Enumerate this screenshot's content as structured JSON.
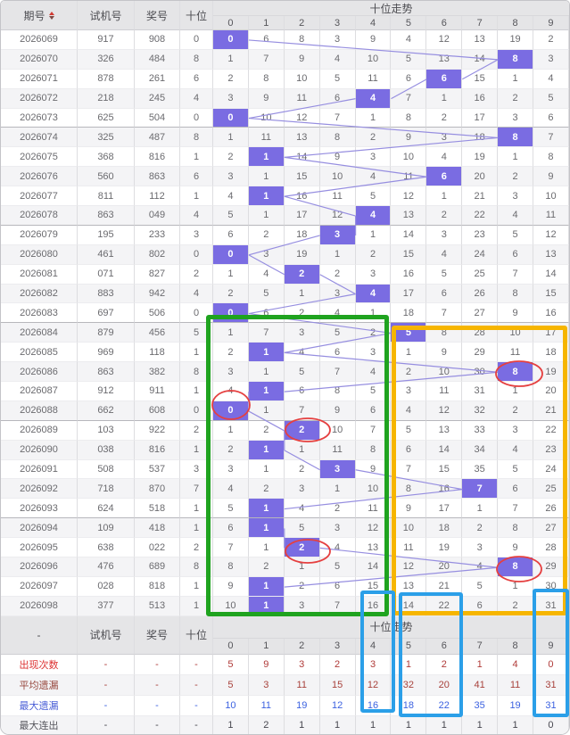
{
  "header": {
    "issue": "期号",
    "test": "试机号",
    "prize": "奖号",
    "tens": "十位",
    "trend": "十位走势"
  },
  "summary_header": {
    "issue": "-",
    "test": "试机号",
    "prize": "奖号",
    "tens": "十位",
    "trend": "十位走势"
  },
  "colors": {
    "hit_cell": "#7a6ce2",
    "trend_line": "#968ee0",
    "green_box": "#1fa31f",
    "yellow_box": "#f6b500",
    "blue_box": "#2b9fe8",
    "red_circle": "#e54040",
    "appear_text": "#dd3434",
    "avg_text": "#97493f",
    "max_miss_text": "#4a5ed6",
    "max_streak_text": "#55555c"
  },
  "chart_data": {
    "type": "table",
    "title": "十位走势",
    "digit_columns": [
      "0",
      "1",
      "2",
      "3",
      "4",
      "5",
      "6",
      "7",
      "8",
      "9"
    ],
    "rows": [
      {
        "issue": "2026069",
        "test": "917",
        "prize": "908",
        "tens": "0",
        "hit": 0,
        "cells": [
          "0",
          "6",
          "8",
          "3",
          "9",
          "4",
          "12",
          "13",
          "19",
          "2"
        ]
      },
      {
        "issue": "2026070",
        "test": "326",
        "prize": "484",
        "tens": "8",
        "hit": 8,
        "cells": [
          "1",
          "7",
          "9",
          "4",
          "10",
          "5",
          "13",
          "14",
          "8",
          "3"
        ]
      },
      {
        "issue": "2026071",
        "test": "878",
        "prize": "261",
        "tens": "6",
        "hit": 6,
        "cells": [
          "2",
          "8",
          "10",
          "5",
          "11",
          "6",
          "6",
          "15",
          "1",
          "4"
        ]
      },
      {
        "issue": "2026072",
        "test": "218",
        "prize": "245",
        "tens": "4",
        "hit": 4,
        "cells": [
          "3",
          "9",
          "11",
          "6",
          "4",
          "7",
          "1",
          "16",
          "2",
          "5"
        ]
      },
      {
        "issue": "2026073",
        "test": "625",
        "prize": "504",
        "tens": "0",
        "hit": 0,
        "cells": [
          "0",
          "10",
          "12",
          "7",
          "1",
          "8",
          "2",
          "17",
          "3",
          "6"
        ]
      },
      {
        "issue": "2026074",
        "test": "325",
        "prize": "487",
        "tens": "8",
        "hit": 8,
        "cells": [
          "1",
          "11",
          "13",
          "8",
          "2",
          "9",
          "3",
          "18",
          "8",
          "7"
        ]
      },
      {
        "issue": "2026075",
        "test": "368",
        "prize": "816",
        "tens": "1",
        "hit": 1,
        "cells": [
          "2",
          "1",
          "14",
          "9",
          "3",
          "10",
          "4",
          "19",
          "1",
          "8"
        ]
      },
      {
        "issue": "2026076",
        "test": "560",
        "prize": "863",
        "tens": "6",
        "hit": 6,
        "cells": [
          "3",
          "1",
          "15",
          "10",
          "4",
          "11",
          "6",
          "20",
          "2",
          "9"
        ]
      },
      {
        "issue": "2026077",
        "test": "811",
        "prize": "112",
        "tens": "1",
        "hit": 1,
        "cells": [
          "4",
          "1",
          "16",
          "11",
          "5",
          "12",
          "1",
          "21",
          "3",
          "10"
        ]
      },
      {
        "issue": "2026078",
        "test": "863",
        "prize": "049",
        "tens": "4",
        "hit": 4,
        "cells": [
          "5",
          "1",
          "17",
          "12",
          "4",
          "13",
          "2",
          "22",
          "4",
          "11"
        ]
      },
      {
        "issue": "2026079",
        "test": "195",
        "prize": "233",
        "tens": "3",
        "hit": 3,
        "cells": [
          "6",
          "2",
          "18",
          "3",
          "1",
          "14",
          "3",
          "23",
          "5",
          "12"
        ]
      },
      {
        "issue": "2026080",
        "test": "461",
        "prize": "802",
        "tens": "0",
        "hit": 0,
        "cells": [
          "0",
          "3",
          "19",
          "1",
          "2",
          "15",
          "4",
          "24",
          "6",
          "13"
        ]
      },
      {
        "issue": "2026081",
        "test": "071",
        "prize": "827",
        "tens": "2",
        "hit": 2,
        "cells": [
          "1",
          "4",
          "2",
          "2",
          "3",
          "16",
          "5",
          "25",
          "7",
          "14"
        ]
      },
      {
        "issue": "2026082",
        "test": "883",
        "prize": "942",
        "tens": "4",
        "hit": 4,
        "cells": [
          "2",
          "5",
          "1",
          "3",
          "4",
          "17",
          "6",
          "26",
          "8",
          "15"
        ]
      },
      {
        "issue": "2026083",
        "test": "697",
        "prize": "506",
        "tens": "0",
        "hit": 0,
        "cells": [
          "0",
          "6",
          "2",
          "4",
          "1",
          "18",
          "7",
          "27",
          "9",
          "16"
        ]
      },
      {
        "issue": "2026084",
        "test": "879",
        "prize": "456",
        "tens": "5",
        "hit": 5,
        "cells": [
          "1",
          "7",
          "3",
          "5",
          "2",
          "5",
          "8",
          "28",
          "10",
          "17"
        ]
      },
      {
        "issue": "2026085",
        "test": "969",
        "prize": "118",
        "tens": "1",
        "hit": 1,
        "cells": [
          "2",
          "1",
          "4",
          "6",
          "3",
          "1",
          "9",
          "29",
          "11",
          "18"
        ]
      },
      {
        "issue": "2026086",
        "test": "863",
        "prize": "382",
        "tens": "8",
        "hit": 8,
        "cells": [
          "3",
          "1",
          "5",
          "7",
          "4",
          "2",
          "10",
          "30",
          "8",
          "19"
        ]
      },
      {
        "issue": "2026087",
        "test": "912",
        "prize": "911",
        "tens": "1",
        "hit": 1,
        "cells": [
          "4",
          "1",
          "6",
          "8",
          "5",
          "3",
          "11",
          "31",
          "1",
          "20"
        ]
      },
      {
        "issue": "2026088",
        "test": "662",
        "prize": "608",
        "tens": "0",
        "hit": 0,
        "cells": [
          "0",
          "1",
          "7",
          "9",
          "6",
          "4",
          "12",
          "32",
          "2",
          "21"
        ]
      },
      {
        "issue": "2026089",
        "test": "103",
        "prize": "922",
        "tens": "2",
        "hit": 2,
        "cells": [
          "1",
          "2",
          "2",
          "10",
          "7",
          "5",
          "13",
          "33",
          "3",
          "22"
        ]
      },
      {
        "issue": "2026090",
        "test": "038",
        "prize": "816",
        "tens": "1",
        "hit": 1,
        "cells": [
          "2",
          "1",
          "1",
          "11",
          "8",
          "6",
          "14",
          "34",
          "4",
          "23"
        ]
      },
      {
        "issue": "2026091",
        "test": "508",
        "prize": "537",
        "tens": "3",
        "hit": 3,
        "cells": [
          "3",
          "1",
          "2",
          "3",
          "9",
          "7",
          "15",
          "35",
          "5",
          "24"
        ]
      },
      {
        "issue": "2026092",
        "test": "718",
        "prize": "870",
        "tens": "7",
        "hit": 7,
        "cells": [
          "4",
          "2",
          "3",
          "1",
          "10",
          "8",
          "16",
          "7",
          "6",
          "25"
        ]
      },
      {
        "issue": "2026093",
        "test": "624",
        "prize": "518",
        "tens": "1",
        "hit": 1,
        "cells": [
          "5",
          "1",
          "4",
          "2",
          "11",
          "9",
          "17",
          "1",
          "7",
          "26"
        ]
      },
      {
        "issue": "2026094",
        "test": "109",
        "prize": "418",
        "tens": "1",
        "hit": 1,
        "cells": [
          "6",
          "1",
          "5",
          "3",
          "12",
          "10",
          "18",
          "2",
          "8",
          "27"
        ]
      },
      {
        "issue": "2026095",
        "test": "638",
        "prize": "022",
        "tens": "2",
        "hit": 2,
        "cells": [
          "7",
          "1",
          "2",
          "4",
          "13",
          "11",
          "19",
          "3",
          "9",
          "28"
        ]
      },
      {
        "issue": "2026096",
        "test": "476",
        "prize": "689",
        "tens": "8",
        "hit": 8,
        "cells": [
          "8",
          "2",
          "1",
          "5",
          "14",
          "12",
          "20",
          "4",
          "8",
          "29"
        ]
      },
      {
        "issue": "2026097",
        "test": "028",
        "prize": "818",
        "tens": "1",
        "hit": 1,
        "cells": [
          "9",
          "1",
          "2",
          "6",
          "15",
          "13",
          "21",
          "5",
          "1",
          "30"
        ]
      },
      {
        "issue": "2026098",
        "test": "377",
        "prize": "513",
        "tens": "1",
        "hit": 1,
        "cells": [
          "10",
          "1",
          "3",
          "7",
          "16",
          "14",
          "22",
          "6",
          "2",
          "31"
        ]
      }
    ],
    "summary_rows": [
      {
        "key": "appear",
        "label": "出现次数",
        "dash": "-",
        "values": [
          "5",
          "9",
          "3",
          "2",
          "3",
          "1",
          "2",
          "1",
          "4",
          "0"
        ]
      },
      {
        "key": "avg",
        "label": "平均遗漏",
        "dash": "-",
        "values": [
          "5",
          "3",
          "11",
          "15",
          "12",
          "32",
          "20",
          "41",
          "11",
          "31"
        ]
      },
      {
        "key": "maxmiss",
        "label": "最大遗漏",
        "dash": "-",
        "values": [
          "10",
          "11",
          "19",
          "12",
          "16",
          "18",
          "22",
          "35",
          "19",
          "31"
        ]
      },
      {
        "key": "streak",
        "label": "最大连出",
        "dash": "-",
        "values": [
          "1",
          "2",
          "1",
          "1",
          "1",
          "1",
          "1",
          "1",
          "1",
          "0"
        ]
      }
    ]
  }
}
